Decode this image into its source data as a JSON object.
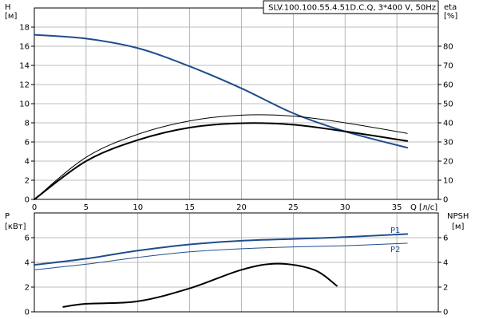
{
  "chart_data": [
    {
      "type": "line",
      "title": "SLV.100.100.55.4.51D.C.Q, 3*400 V, 50Hz",
      "x_axis": {
        "label": "Q [л/с]",
        "min": 0,
        "max": 39,
        "ticks": [
          0,
          5,
          10,
          15,
          20,
          25,
          30,
          35
        ]
      },
      "y_left": {
        "label": [
          "H",
          "[м]"
        ],
        "min": 0,
        "max": 20,
        "ticks": [
          0,
          2,
          4,
          6,
          8,
          10,
          12,
          14,
          16,
          18
        ]
      },
      "y_right": {
        "label": [
          "eta",
          "[%]"
        ],
        "min": 0,
        "max": 100,
        "ticks": [
          0,
          10,
          20,
          30,
          40,
          50,
          60,
          70,
          80
        ]
      },
      "grid": true,
      "series": [
        {
          "axis": "left",
          "color": "#1f4e8c",
          "width": 2,
          "x": [
            0,
            5,
            10,
            15,
            20,
            25,
            30,
            36
          ],
          "values": [
            17.2,
            16.8,
            15.8,
            13.9,
            11.6,
            9.0,
            7.1,
            5.4
          ]
        },
        {
          "axis": "right",
          "color": "#000000",
          "width": 2,
          "x": [
            0,
            5,
            10,
            15,
            20,
            25,
            30,
            36
          ],
          "values": [
            0,
            20,
            31,
            37.5,
            39.8,
            39,
            35.5,
            30.5
          ]
        },
        {
          "axis": "right",
          "color": "#000000",
          "width": 1,
          "x": [
            0,
            5,
            10,
            15,
            20,
            25,
            30,
            36
          ],
          "values": [
            0,
            22,
            34,
            41,
            44,
            43.5,
            40,
            34.5
          ]
        }
      ]
    },
    {
      "type": "line",
      "x_axis": {
        "min": 0,
        "max": 39
      },
      "y_left": {
        "label": [
          "P",
          "[кВт]"
        ],
        "min": 0,
        "max": 8,
        "ticks": [
          0,
          2,
          4,
          6
        ]
      },
      "y_right": {
        "label": [
          "NPSH",
          "[м]"
        ],
        "min": 0,
        "max": 8,
        "ticks": [
          0,
          2,
          4,
          6
        ]
      },
      "grid": true,
      "series": [
        {
          "name": "P1",
          "axis": "left",
          "color": "#1f4e8c",
          "width": 2,
          "x": [
            0,
            5,
            10,
            15,
            20,
            25,
            30,
            36
          ],
          "values": [
            3.8,
            4.3,
            4.95,
            5.45,
            5.75,
            5.9,
            6.05,
            6.3
          ]
        },
        {
          "name": "P2",
          "axis": "left",
          "color": "#1f4e8c",
          "width": 1,
          "x": [
            0,
            5,
            10,
            15,
            20,
            25,
            30,
            36
          ],
          "values": [
            3.4,
            3.85,
            4.4,
            4.85,
            5.1,
            5.25,
            5.35,
            5.55
          ]
        },
        {
          "axis": "right",
          "color": "#000000",
          "width": 2,
          "x": [
            2.8,
            5,
            10,
            15,
            20,
            23.5,
            27,
            29.2
          ],
          "values": [
            0.4,
            0.65,
            0.85,
            1.9,
            3.4,
            3.9,
            3.4,
            2.1
          ]
        }
      ]
    }
  ]
}
